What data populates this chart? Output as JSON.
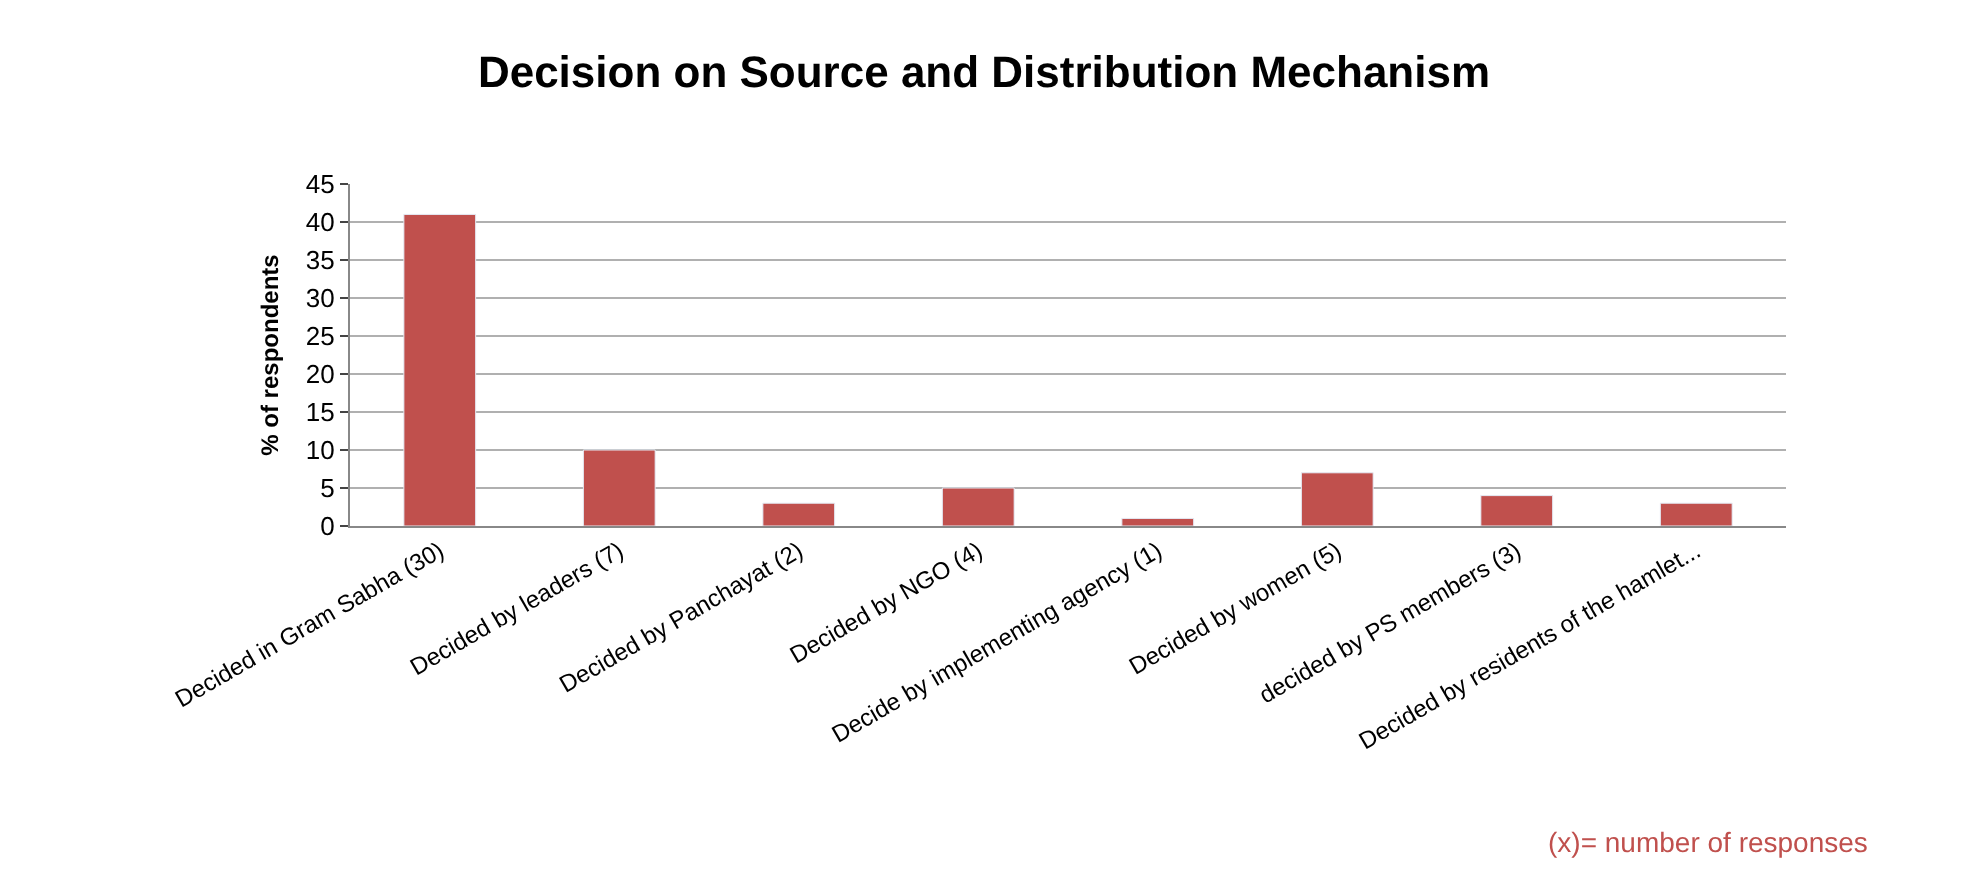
{
  "chart_data": {
    "type": "bar",
    "title": "Decision on Source and Distribution Mechanism",
    "ylabel": "% of respondents",
    "categories": [
      "Decided in Gram Sabha (30)",
      "Decided by leaders (7)",
      "Decided by Panchayat (2)",
      "Decided by NGO (4)",
      "Decide by implementing agency (1)",
      "Decided by women (5)",
      "decided by PS members (3)",
      "Decided by residents of the hamlet..."
    ],
    "values": [
      41,
      10,
      3,
      5,
      1,
      7,
      4,
      3
    ],
    "color": "#c0504d",
    "ylim": [
      0,
      45
    ],
    "yticks": [
      0,
      5,
      10,
      15,
      20,
      25,
      30,
      35,
      40,
      45
    ],
    "grid": "y",
    "annotations": [
      "(x)= number of responses"
    ]
  }
}
